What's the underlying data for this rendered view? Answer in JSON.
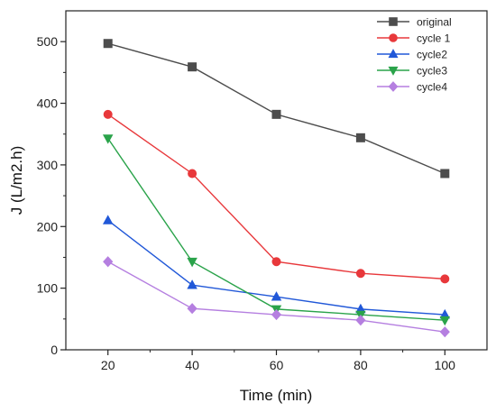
{
  "chart_data": {
    "type": "line",
    "xlabel": "Time (min)",
    "ylabel": "J (L/m2.h)",
    "xlim": [
      10,
      110
    ],
    "ylim": [
      0,
      550
    ],
    "x_ticks": [
      20,
      40,
      60,
      80,
      100
    ],
    "y_ticks": [
      0,
      100,
      200,
      300,
      400,
      500
    ],
    "legend_position": "top-right",
    "grid": false,
    "x": [
      20,
      40,
      60,
      80,
      100
    ],
    "series": [
      {
        "name": "original",
        "color": "#4d4d4d",
        "marker": "square",
        "values": [
          497,
          459,
          382,
          344,
          286
        ]
      },
      {
        "name": "cycle 1",
        "color": "#e8383b",
        "marker": "circle",
        "values": [
          382,
          286,
          143,
          124,
          115
        ]
      },
      {
        "name": "cycle2",
        "color": "#2158d8",
        "marker": "triangle-up",
        "values": [
          210,
          105,
          86,
          66,
          57
        ]
      },
      {
        "name": "cycle3",
        "color": "#2aa34a",
        "marker": "triangle-down",
        "values": [
          343,
          143,
          66,
          57,
          48
        ]
      },
      {
        "name": "cycle4",
        "color": "#b57fe0",
        "marker": "diamond",
        "values": [
          143,
          67,
          57,
          48,
          29
        ]
      }
    ]
  }
}
